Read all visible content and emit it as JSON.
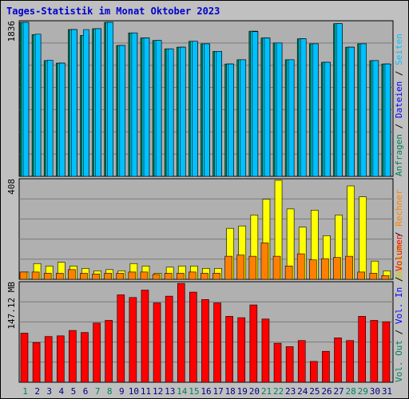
{
  "title": "Tages-Statistik im Monat Oktober 2023",
  "colors": {
    "background": "#c0c0c0",
    "plot_bg": "#b0b0b0",
    "title": "#0000cc",
    "hits": "#00805c",
    "files": "#00e0ff",
    "pages": "#00c0ff",
    "visits": "#ffff00",
    "sites": "#ff8000",
    "kbytes": "#ff0000",
    "weekend": "#00805c",
    "axis_text": "#000080"
  },
  "right_legend": {
    "panel1": [
      {
        "text": "Anfragen",
        "color": "#00805c"
      },
      {
        "text": " / ",
        "color": "#000000"
      },
      {
        "text": "Dateien",
        "color": "#0000ff"
      },
      {
        "text": " / ",
        "color": "#000000"
      },
      {
        "text": "Seiten",
        "color": "#00c0ff"
      }
    ],
    "panel2": [
      {
        "text": "Besuche",
        "color": "#c8c800"
      },
      {
        "text": " / ",
        "color": "#000000"
      },
      {
        "text": "Rechner",
        "color": "#ff8000"
      }
    ],
    "panel3": [
      {
        "text": "Vol. Out",
        "color": "#00805c"
      },
      {
        "text": " / ",
        "color": "#000000"
      },
      {
        "text": "Vol. In",
        "color": "#0000ff"
      },
      {
        "text": " / ",
        "color": "#000000"
      },
      {
        "text": "Volumen",
        "color": "#ff0000"
      }
    ]
  },
  "chart_data": {
    "type": "bar",
    "categories": [
      "1",
      "2",
      "3",
      "4",
      "5",
      "6",
      "7",
      "8",
      "9",
      "10",
      "11",
      "12",
      "13",
      "14",
      "15",
      "16",
      "17",
      "18",
      "19",
      "20",
      "21",
      "22",
      "23",
      "24",
      "25",
      "26",
      "27",
      "28",
      "29",
      "30",
      "31"
    ],
    "weekend_days": [
      1,
      7,
      8,
      14,
      15,
      21,
      22,
      28,
      29
    ],
    "panels": [
      {
        "id": "requests",
        "ylabel": "1836",
        "ymax": 1836,
        "series": [
          {
            "name": "Anfragen",
            "values": [
              1836,
              1690,
              1380,
              1350,
              1750,
              1680,
              1760,
              1836,
              1560,
              1710,
              1650,
              1620,
              1520,
              1540,
              1610,
              1580,
              1490,
              1340,
              1390,
              1730,
              1650,
              1590,
              1390,
              1640,
              1580,
              1360,
              1820,
              1540,
              1580,
              1380,
              1340
            ]
          },
          {
            "name": "Dateien",
            "values": [
              1836,
              1690,
              1380,
              1350,
              1750,
              1680,
              1760,
              1836,
              1560,
              1710,
              1650,
              1620,
              1520,
              1540,
              1610,
              1580,
              1490,
              1340,
              1390,
              1730,
              1650,
              1590,
              1390,
              1640,
              1580,
              1360,
              1820,
              1540,
              1580,
              1380,
              1340
            ]
          },
          {
            "name": "Seiten",
            "values": [
              1836,
              1695,
              1385,
              1350,
              1750,
              1750,
              1760,
              1836,
              1560,
              1710,
              1650,
              1620,
              1520,
              1540,
              1610,
              1580,
              1490,
              1340,
              1390,
              1725,
              1650,
              1590,
              1390,
              1640,
              1580,
              1360,
              1820,
              1540,
              1580,
              1380,
              1340
            ]
          }
        ]
      },
      {
        "id": "visits",
        "ylabel": "408",
        "ymax": 408,
        "series": [
          {
            "name": "Besuche",
            "values": [
              30,
              65,
              55,
              70,
              55,
              45,
              35,
              40,
              35,
              65,
              55,
              25,
              50,
              55,
              55,
              45,
              45,
              210,
              220,
              265,
              330,
              408,
              290,
              215,
              285,
              180,
              265,
              385,
              340,
              75,
              35
            ]
          },
          {
            "name": "Rechner",
            "values": [
              30,
              30,
              25,
              25,
              40,
              25,
              22,
              25,
              25,
              30,
              30,
              20,
              25,
              25,
              30,
              25,
              25,
              95,
              100,
              95,
              150,
              95,
              55,
              105,
              80,
              85,
              90,
              95,
              30,
              25,
              15
            ]
          }
        ]
      },
      {
        "id": "volume",
        "ylabel": "147.12 MB",
        "ymax": 147.12,
        "series": [
          {
            "name": "Volumen",
            "values": [
              73,
              59,
              68,
              69,
              77,
              74,
              88,
              92,
              130,
              126,
              137,
              118,
              128,
              147,
              134,
              123,
              118,
              98,
              96,
              115,
              94,
              58,
              53,
              62,
              31,
              46,
              66,
              62,
              98,
              92,
              90
            ]
          }
        ]
      }
    ]
  }
}
